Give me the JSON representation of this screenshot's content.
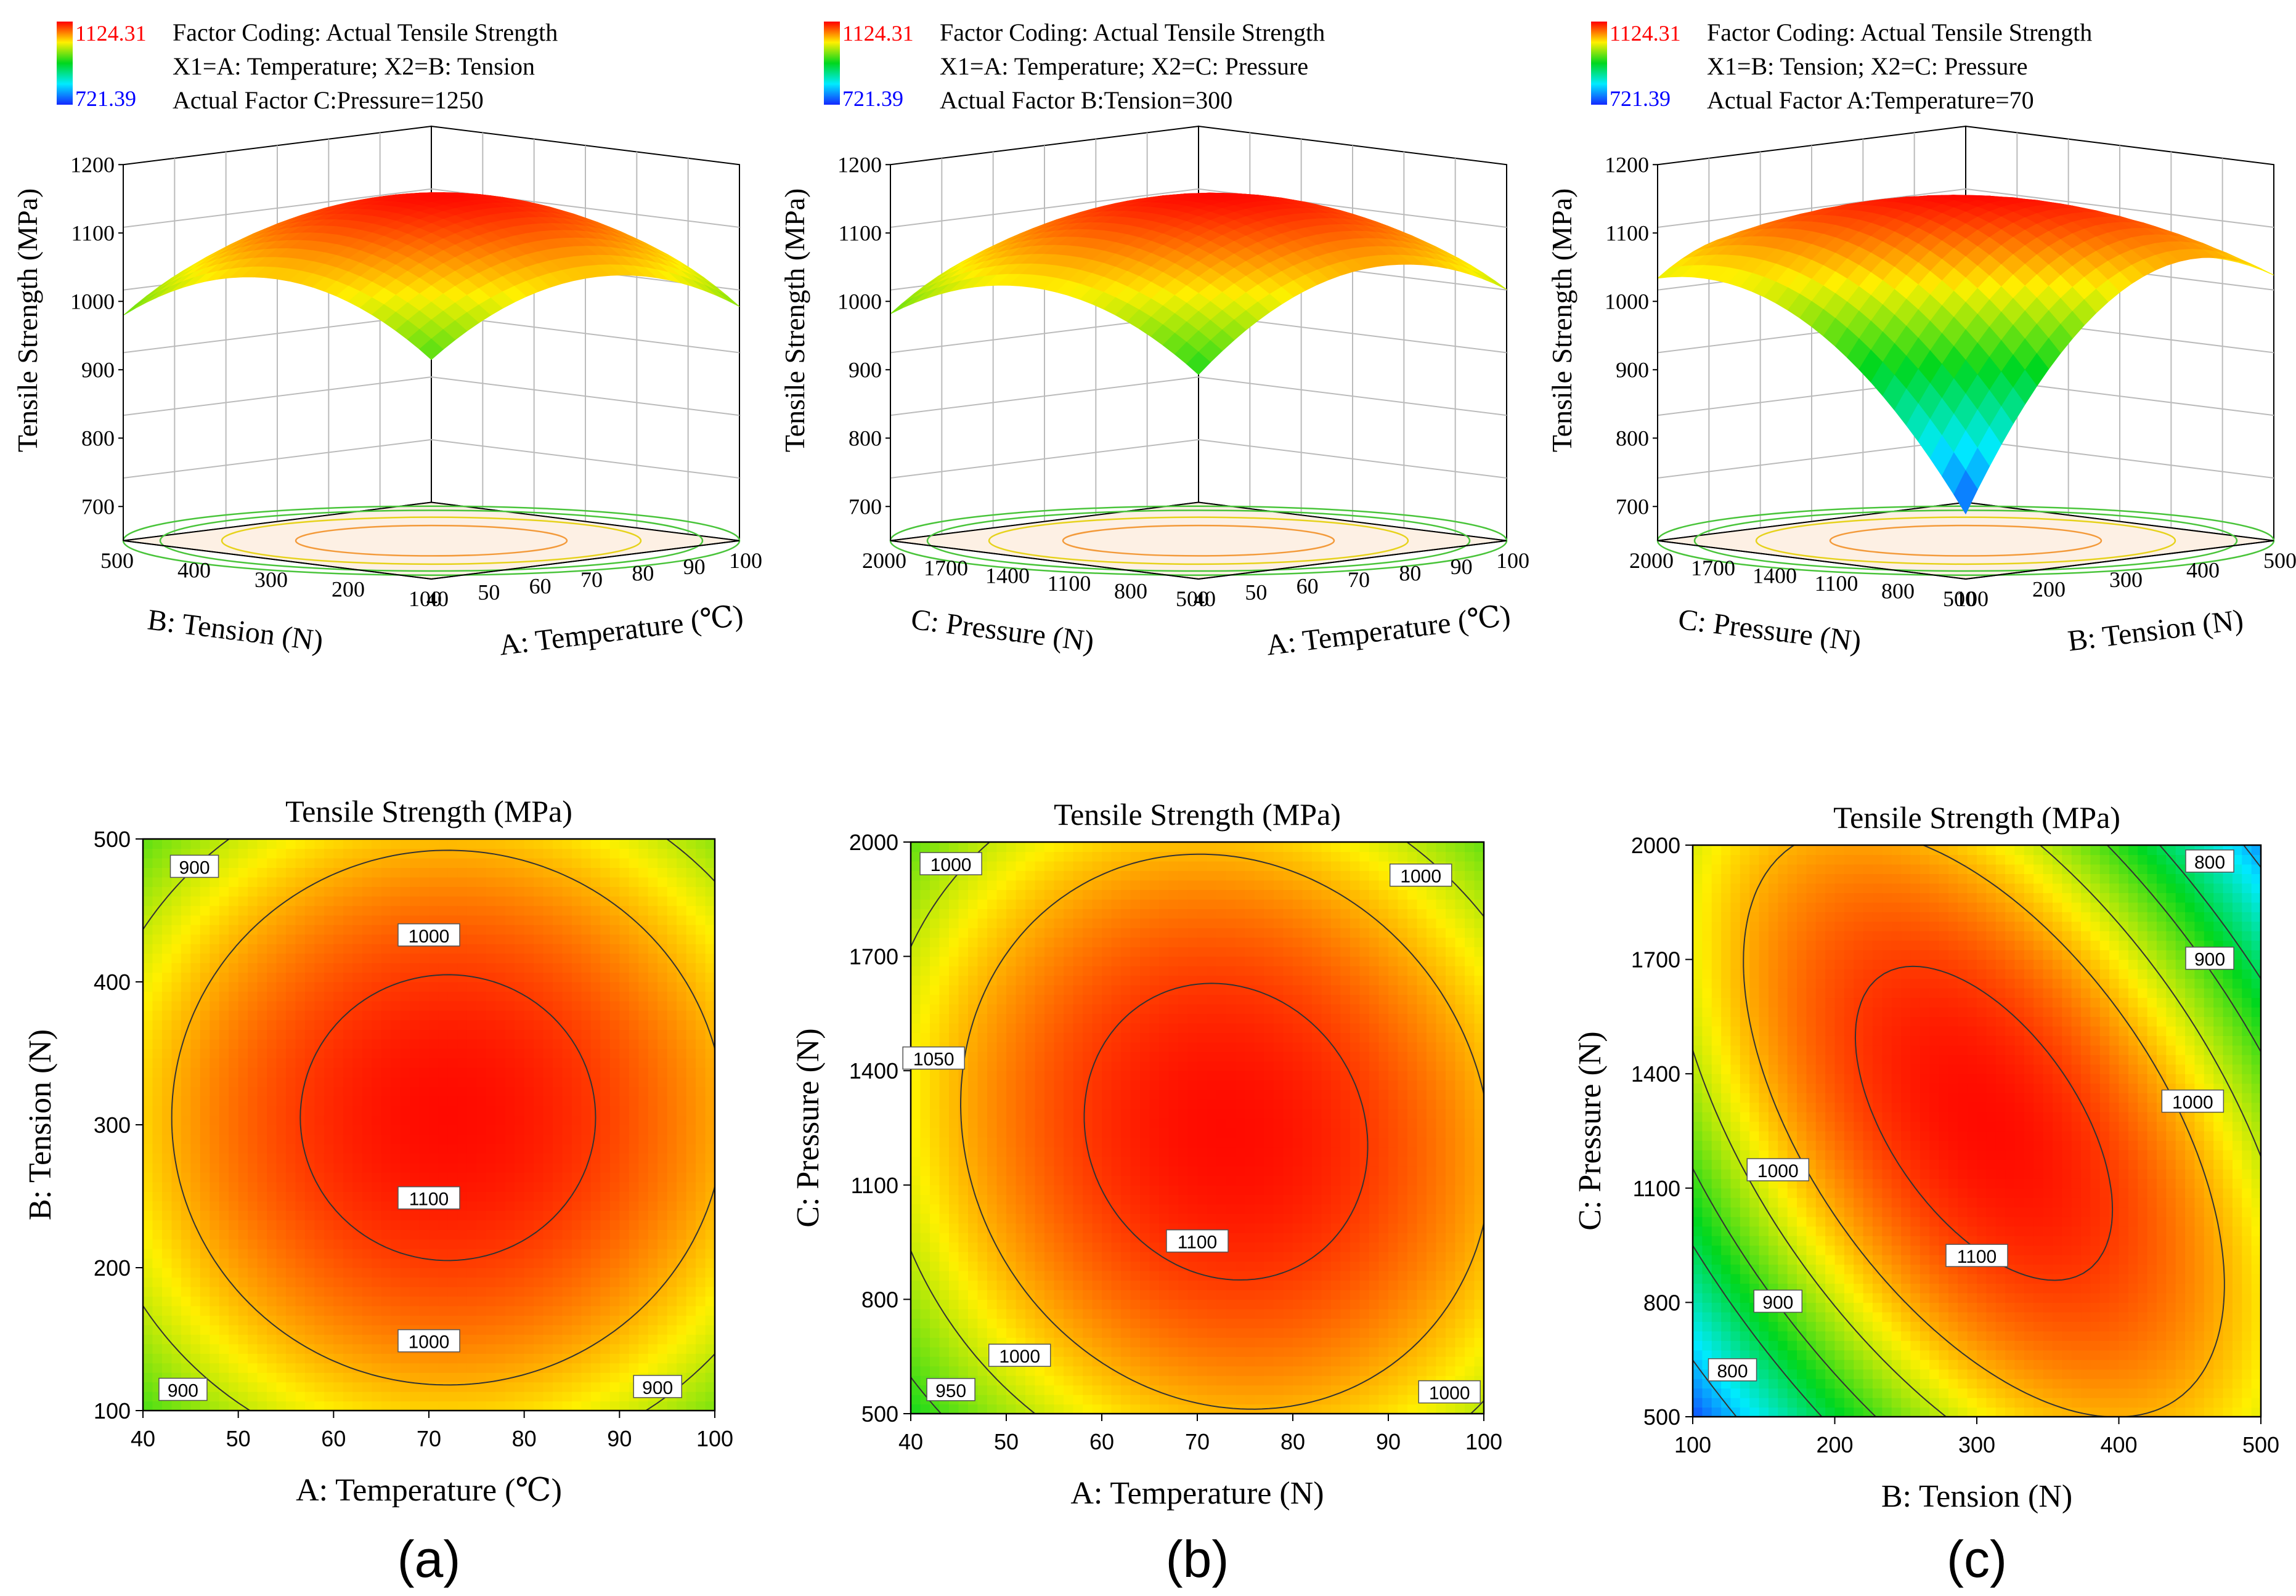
{
  "chart_data": [
    {
      "type": "surface",
      "panel_label": "(a)",
      "legend": {
        "max": "1124.31",
        "min": "721.39",
        "max_color": "#ff0000",
        "min_color": "#0000ff",
        "lines": [
          "Factor Coding: Actual Tensile Strength",
          "X1=A: Temperature; X2=B: Tension",
          "Actual Factor C:Pressure=1250"
        ]
      },
      "zlabel": "Tensile Strength (MPa)",
      "zticks": [
        "700",
        "800",
        "900",
        "1000",
        "1100",
        "1200"
      ],
      "zlim": [
        650,
        1200
      ],
      "xlabel": "A: Temperature (℃)",
      "xticks": [
        "40",
        "50",
        "60",
        "70",
        "80",
        "90",
        "100"
      ],
      "ylabel": "B: Tension (N)",
      "yticks": [
        "100",
        "200",
        "300",
        "400",
        "500"
      ],
      "model": {
        "x0": 72,
        "y0": 305,
        "rx": 0.5,
        "ry": 0.5,
        "zmax": 1120,
        "cx": 300,
        "cy": 320,
        "rho": 0
      },
      "view": {
        "rot": 1.0
      },
      "contour": {
        "title": "Tensile Strength (MPa)",
        "xlabel": "A: Temperature (℃)",
        "ylabel": "B:  Tension (N)",
        "xticks": [
          "40",
          "50",
          "60",
          "70",
          "80",
          "90",
          "100"
        ],
        "yticks": [
          "100",
          "200",
          "300",
          "400",
          "500"
        ],
        "labels": [
          "900",
          "1000",
          "1100",
          "1000",
          "900",
          "900"
        ]
      }
    },
    {
      "type": "surface",
      "panel_label": "(b)",
      "legend": {
        "max": "1124.31",
        "min": "721.39",
        "max_color": "#ff0000",
        "min_color": "#0000ff",
        "lines": [
          "Factor Coding: Actual Tensile Strength",
          "X1=A: Temperature; X2=C: Pressure",
          "Actual Factor B:Tension=300"
        ]
      },
      "zlabel": "Tensile Strength (MPa)",
      "zticks": [
        "700",
        "800",
        "900",
        "1000",
        "1100",
        "1200"
      ],
      "zlim": [
        650,
        1200
      ],
      "xlabel": "A: Temperature (℃)",
      "xticks": [
        "40",
        "50",
        "60",
        "70",
        "80",
        "90",
        "100"
      ],
      "ylabel": "C: Pressure (N)",
      "yticks": [
        "500",
        "800",
        "1100",
        "1400",
        "1700",
        "2000"
      ],
      "model": {
        "x0": 73,
        "y0": 1240,
        "rx": 0.5,
        "ry": 0.5,
        "zmax": 1120,
        "cx": 330,
        "cy": 300,
        "rho": 0.1
      },
      "view": {
        "rot": 1.0
      },
      "contour": {
        "title": "Tensile Strength (MPa)",
        "xlabel": "A: Temperature  (N)",
        "ylabel": "C: Pressure (N)",
        "xticks": [
          "40",
          "50",
          "60",
          "70",
          "80",
          "90",
          "100"
        ],
        "yticks": [
          "500",
          "800",
          "1100",
          "1400",
          "1700",
          "2000"
        ],
        "labels": [
          "1000",
          "1000",
          "1050",
          "1100",
          "1000",
          "950",
          "1000"
        ]
      }
    },
    {
      "type": "surface",
      "panel_label": "(c)",
      "legend": {
        "max": "1124.31",
        "min": "721.39",
        "max_color": "#ff0000",
        "min_color": "#0000ff",
        "lines": [
          "Factor Coding: Actual Tensile Strength",
          "X1=B: Tension; X2=C: Pressure",
          "Actual Factor A:Temperature=70"
        ]
      },
      "zlabel": "Tensile Strength (MPa)",
      "zticks": [
        "700",
        "800",
        "900",
        "1000",
        "1100",
        "1200"
      ],
      "zlim": [
        650,
        1200
      ],
      "xlabel": "B: Tension (N)",
      "xticks": [
        "100",
        "200",
        "300",
        "400",
        "500"
      ],
      "ylabel": "C: Pressure (N)",
      "yticks": [
        "500",
        "800",
        "1100",
        "1400",
        "1700",
        "2000"
      ],
      "model": {
        "x0": 305,
        "y0": 1270,
        "rx": 0.5,
        "ry": 0.5,
        "zmax": 1120,
        "cx": 560,
        "cy": 380,
        "rho": 0.55
      },
      "view": {
        "rot": -1.0
      },
      "contour": {
        "title": "Tensile Strength (MPa)",
        "xlabel": "B: Tension (N)",
        "ylabel": "C:  Pressure (N)",
        "xticks": [
          "100",
          "200",
          "300",
          "400",
          "500"
        ],
        "yticks": [
          "500",
          "800",
          "1100",
          "1400",
          "1700",
          "2000"
        ],
        "labels": [
          "800",
          "900",
          "1000",
          "1100",
          "1000",
          "900",
          "800"
        ]
      }
    }
  ]
}
